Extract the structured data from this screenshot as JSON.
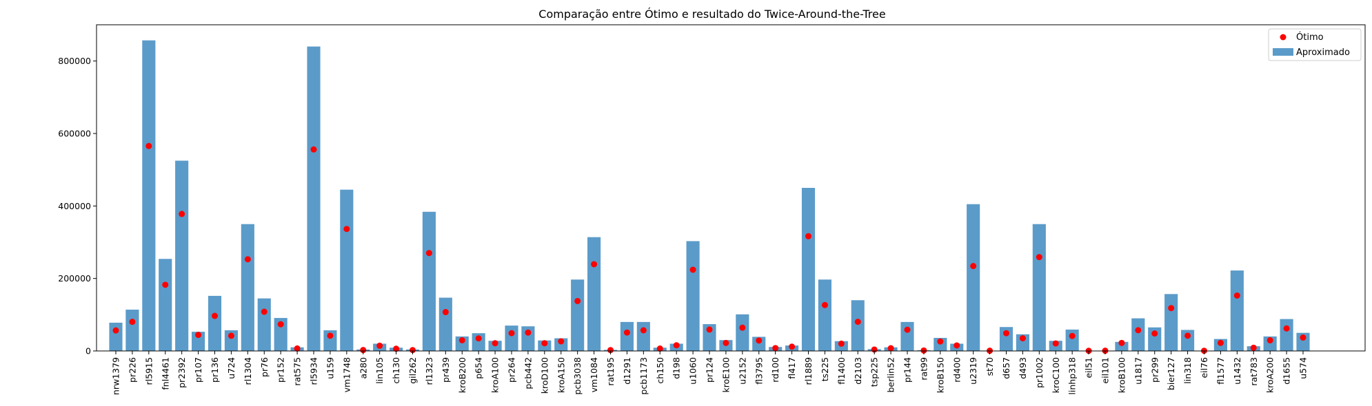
{
  "chart_data": {
    "type": "bar",
    "title": "Comparação entre Ótimo e resultado do Twice-Around-the-Tree",
    "xlabel": "",
    "ylabel": "",
    "ylim": [
      0,
      900000
    ],
    "yticks": [
      0,
      200000,
      400000,
      600000,
      800000
    ],
    "ytick_labels": [
      "0",
      "200000",
      "400000",
      "600000",
      "800000"
    ],
    "legend_position": "top-right",
    "colors": {
      "bar": "#5b9bc9",
      "point": "#ff0000"
    },
    "categories": [
      "nrw1379",
      "pr226",
      "rl5915",
      "fnl4461",
      "pr2392",
      "pr107",
      "pr136",
      "u724",
      "rl1304",
      "pr76",
      "pr152",
      "rat575",
      "rl5934",
      "u159",
      "vm1748",
      "a280",
      "lin105",
      "ch130",
      "gil262",
      "rl1323",
      "pr439",
      "kroB200",
      "p654",
      "kroA100",
      "pr264",
      "pcb442",
      "kroD100",
      "kroA150",
      "pcb3038",
      "vm1084",
      "rat195",
      "d1291",
      "pcb1173",
      "ch150",
      "d198",
      "u1060",
      "pr124",
      "kroE100",
      "u2152",
      "fl3795",
      "rd100",
      "fl417",
      "rl1889",
      "ts225",
      "fl1400",
      "d2103",
      "tsp225",
      "berlin52",
      "pr144",
      "rat99",
      "kroB150",
      "rd400",
      "u2319",
      "st70",
      "d657",
      "d493",
      "pr1002",
      "kroC100",
      "linhp318",
      "eil51",
      "eil101",
      "kroB100",
      "u1817",
      "pr299",
      "bier127",
      "lin318",
      "eil76",
      "fl1577",
      "u1432",
      "rat783",
      "kroA200",
      "d1655",
      "u574"
    ],
    "series": [
      {
        "name": "Aproximado",
        "kind": "bar",
        "values": [
          78000,
          114000,
          857000,
          254000,
          525000,
          53000,
          152000,
          57000,
          350000,
          145000,
          91000,
          10000,
          840000,
          57000,
          445000,
          4000,
          20000,
          9000,
          4000,
          384000,
          147000,
          40000,
          49000,
          28000,
          70000,
          68000,
          29000,
          35000,
          197000,
          314000,
          3000,
          80000,
          80000,
          9000,
          20000,
          303000,
          74000,
          30000,
          101000,
          39000,
          11000,
          15000,
          450000,
          197000,
          27000,
          140000,
          5000,
          10000,
          80000,
          2000,
          36000,
          20000,
          405000,
          1000,
          66000,
          46000,
          350000,
          28000,
          59000,
          600,
          900,
          25000,
          90000,
          65000,
          157000,
          58000,
          700,
          33000,
          222000,
          13000,
          40000,
          88000,
          50000
        ]
      },
      {
        "name": "Ótimo",
        "kind": "scatter",
        "values": [
          56638,
          80369,
          565530,
          182566,
          378032,
          44303,
          96772,
          41910,
          252948,
          108159,
          73682,
          6773,
          556045,
          42080,
          336556,
          2579,
          14379,
          6110,
          2378,
          270199,
          107217,
          29437,
          34643,
          21282,
          49135,
          50778,
          21294,
          26524,
          137694,
          239297,
          2323,
          50801,
          56892,
          6528,
          15780,
          224094,
          59030,
          22068,
          64253,
          28772,
          7910,
          11861,
          316536,
          126643,
          20127,
          80450,
          3916,
          7542,
          58537,
          1211,
          26130,
          15281,
          234256,
          675,
          48912,
          35002,
          259045,
          20749,
          41345,
          426,
          629,
          22141,
          57201,
          48191,
          118282,
          42029,
          538,
          22249,
          152970,
          8806,
          29368,
          62128,
          36905
        ]
      }
    ]
  }
}
